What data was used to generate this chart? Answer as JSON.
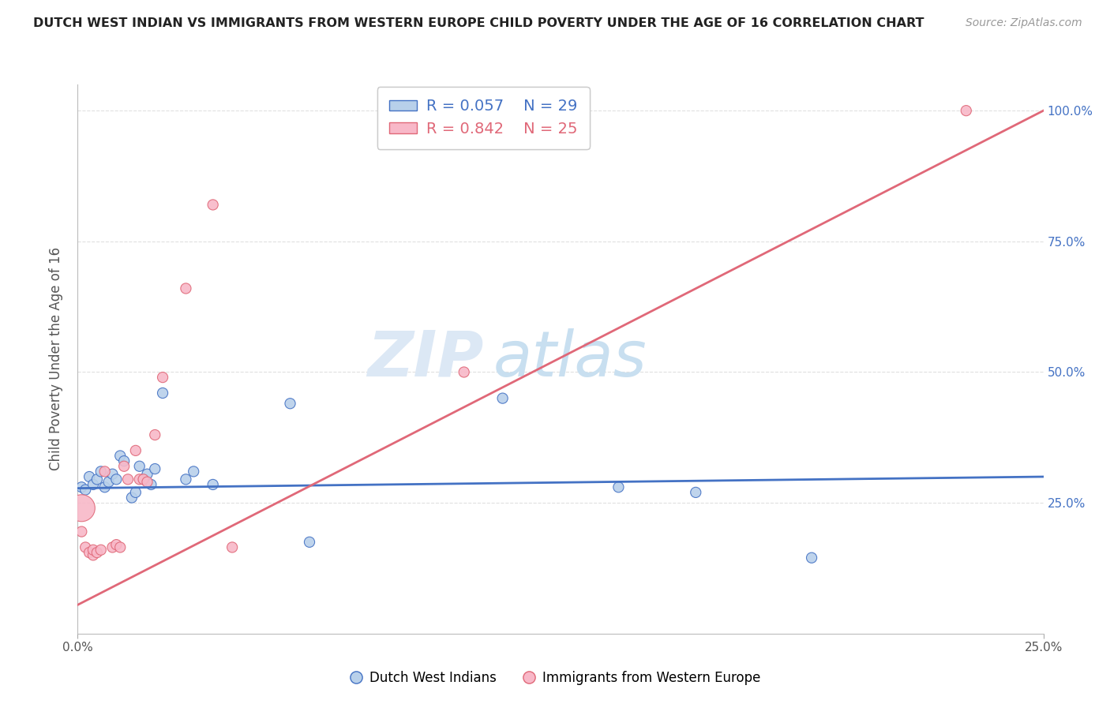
{
  "title": "DUTCH WEST INDIAN VS IMMIGRANTS FROM WESTERN EUROPE CHILD POVERTY UNDER THE AGE OF 16 CORRELATION CHART",
  "source": "Source: ZipAtlas.com",
  "ylabel": "Child Poverty Under the Age of 16",
  "right_yticklabels": [
    "",
    "25.0%",
    "50.0%",
    "75.0%",
    "100.0%"
  ],
  "xlim": [
    0.0,
    0.25
  ],
  "ylim": [
    0.0,
    1.05
  ],
  "blue_R": 0.057,
  "blue_N": 29,
  "pink_R": 0.842,
  "pink_N": 25,
  "blue_color": "#b8d0ea",
  "pink_color": "#f8b8c8",
  "blue_line_color": "#4472c4",
  "pink_line_color": "#e06878",
  "blue_points": [
    [
      0.001,
      0.28
    ],
    [
      0.002,
      0.275
    ],
    [
      0.003,
      0.3
    ],
    [
      0.004,
      0.285
    ],
    [
      0.005,
      0.295
    ],
    [
      0.006,
      0.31
    ],
    [
      0.007,
      0.28
    ],
    [
      0.008,
      0.29
    ],
    [
      0.009,
      0.305
    ],
    [
      0.01,
      0.295
    ],
    [
      0.011,
      0.34
    ],
    [
      0.012,
      0.33
    ],
    [
      0.014,
      0.26
    ],
    [
      0.015,
      0.27
    ],
    [
      0.016,
      0.32
    ],
    [
      0.017,
      0.295
    ],
    [
      0.018,
      0.305
    ],
    [
      0.019,
      0.285
    ],
    [
      0.02,
      0.315
    ],
    [
      0.022,
      0.46
    ],
    [
      0.028,
      0.295
    ],
    [
      0.03,
      0.31
    ],
    [
      0.035,
      0.285
    ],
    [
      0.055,
      0.44
    ],
    [
      0.06,
      0.175
    ],
    [
      0.11,
      0.45
    ],
    [
      0.14,
      0.28
    ],
    [
      0.16,
      0.27
    ],
    [
      0.19,
      0.145
    ]
  ],
  "pink_points": [
    [
      0.001,
      0.24
    ],
    [
      0.001,
      0.195
    ],
    [
      0.002,
      0.165
    ],
    [
      0.003,
      0.155
    ],
    [
      0.004,
      0.15
    ],
    [
      0.004,
      0.16
    ],
    [
      0.005,
      0.155
    ],
    [
      0.006,
      0.16
    ],
    [
      0.007,
      0.31
    ],
    [
      0.009,
      0.165
    ],
    [
      0.01,
      0.17
    ],
    [
      0.011,
      0.165
    ],
    [
      0.012,
      0.32
    ],
    [
      0.013,
      0.295
    ],
    [
      0.015,
      0.35
    ],
    [
      0.016,
      0.295
    ],
    [
      0.017,
      0.295
    ],
    [
      0.018,
      0.29
    ],
    [
      0.02,
      0.38
    ],
    [
      0.022,
      0.49
    ],
    [
      0.028,
      0.66
    ],
    [
      0.035,
      0.82
    ],
    [
      0.04,
      0.165
    ],
    [
      0.1,
      0.5
    ],
    [
      0.23,
      1.0
    ]
  ],
  "blue_point_sizes": [
    90,
    90,
    90,
    90,
    90,
    90,
    90,
    90,
    90,
    90,
    90,
    90,
    90,
    90,
    90,
    90,
    90,
    90,
    90,
    90,
    90,
    90,
    90,
    90,
    90,
    90,
    90,
    90,
    90
  ],
  "pink_point_sizes": [
    600,
    90,
    90,
    90,
    90,
    90,
    90,
    90,
    90,
    90,
    90,
    90,
    90,
    90,
    90,
    90,
    90,
    90,
    90,
    90,
    90,
    90,
    90,
    90,
    90
  ],
  "blue_line": {
    "x0": 0.0,
    "x1": 0.25,
    "y0": 0.278,
    "y1": 0.3
  },
  "pink_line": {
    "x0": 0.0,
    "x1": 0.25,
    "y0": 0.055,
    "y1": 1.0
  },
  "background_color": "#ffffff",
  "grid_color": "#e0e0e0",
  "watermark_color": "#dce8f5",
  "legend_labels": [
    "Dutch West Indians",
    "Immigrants from Western Europe"
  ]
}
